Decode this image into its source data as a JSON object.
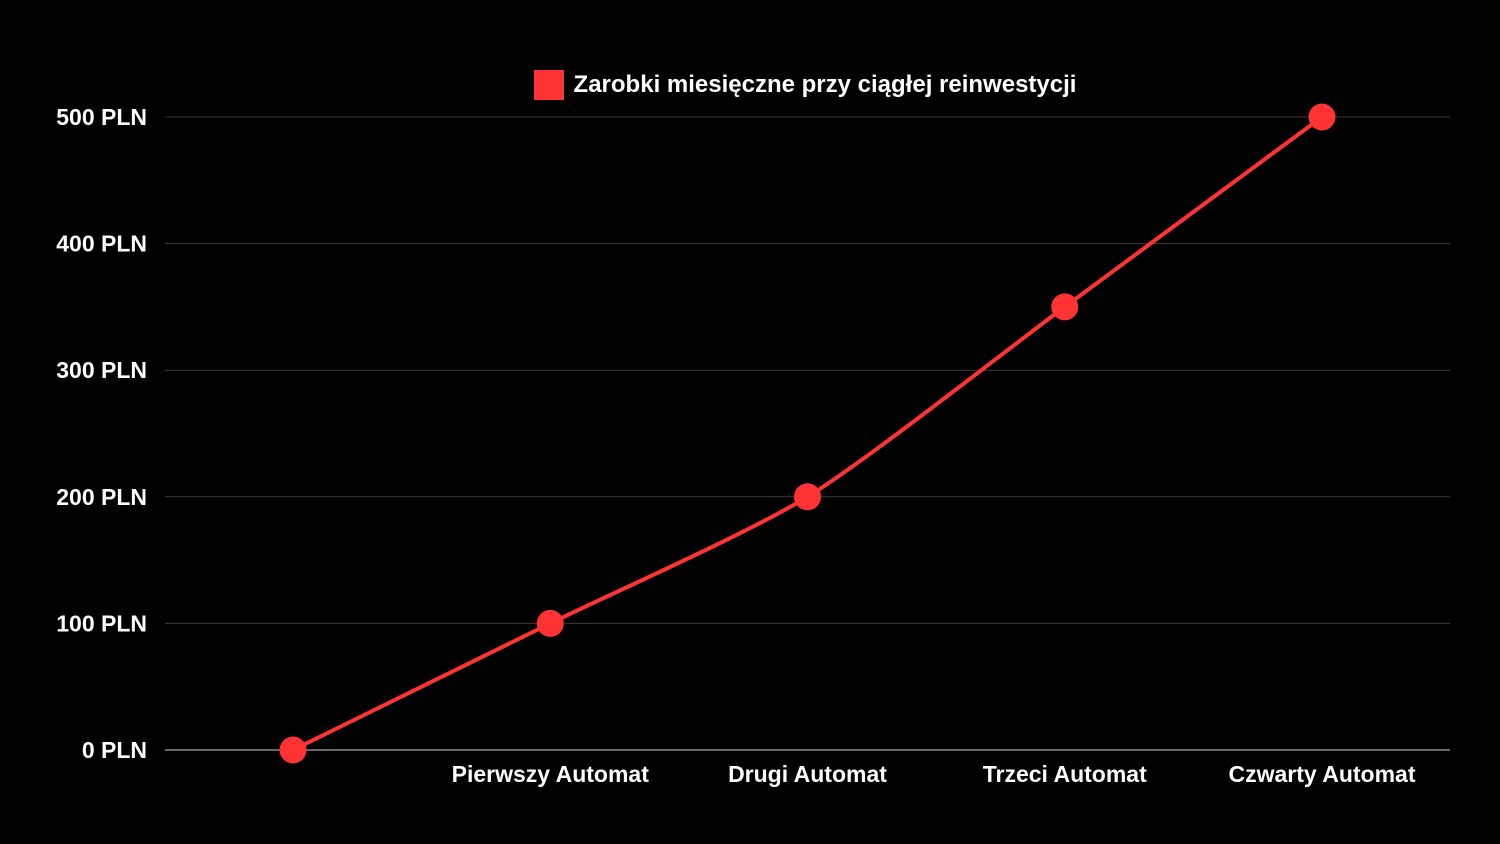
{
  "chart_data": {
    "type": "line",
    "categories": [
      "",
      "Pierwszy Automat",
      "Drugi Automat",
      "Trzeci Automat",
      "Czwarty Automat"
    ],
    "series": [
      {
        "name": "Zarobki miesięczne przy ciągłej reinwestycji",
        "values": [
          0,
          100,
          200,
          350,
          500
        ],
        "color": "#ff3333"
      }
    ],
    "y_ticks": [
      0,
      100,
      200,
      300,
      400,
      500
    ],
    "y_tick_labels": [
      "0 PLN",
      "100 PLN",
      "200 PLN",
      "300 PLN",
      "400 PLN",
      "500 PLN"
    ],
    "ylim": [
      0,
      500
    ],
    "grid": true,
    "legend_position": "top-center",
    "smooth": true,
    "background": "#000000",
    "gridline_color": "#3a3a3a",
    "axis_color": "#8a8a8a"
  }
}
